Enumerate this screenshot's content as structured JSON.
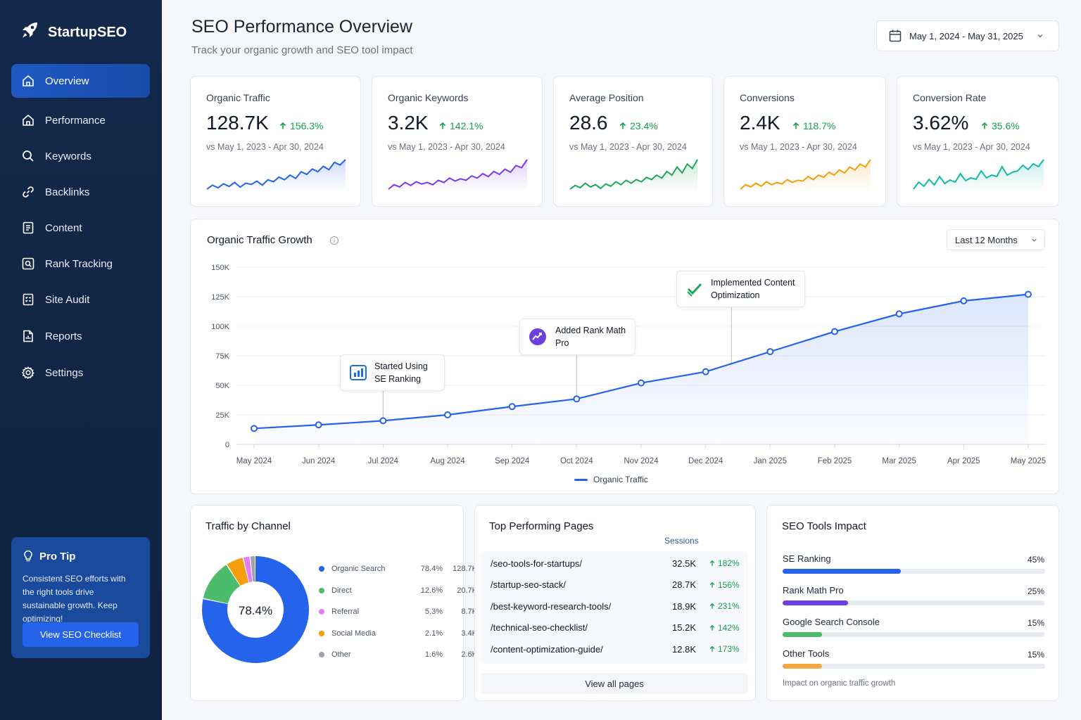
{
  "app": {
    "name": "StartupSEO"
  },
  "sidebar": {
    "items": [
      {
        "label": "Overview",
        "icon": "home-icon"
      },
      {
        "label": "Performance",
        "icon": "home-icon"
      },
      {
        "label": "Keywords",
        "icon": "search-icon"
      },
      {
        "label": "Backlinks",
        "icon": "link-icon"
      },
      {
        "label": "Content",
        "icon": "document-icon"
      },
      {
        "label": "Rank Tracking",
        "icon": "rank-search-icon"
      },
      {
        "label": "Site Audit",
        "icon": "audit-icon"
      },
      {
        "label": "Reports",
        "icon": "report-icon"
      },
      {
        "label": "Settings",
        "icon": "gear-icon"
      }
    ],
    "tip": {
      "title": "Pro Tip",
      "text": "Consistent SEO efforts with the right tools drive sustainable growth. Keep optimizing!",
      "button": "View SEO Checklist"
    }
  },
  "header": {
    "title": "SEO Performance Overview",
    "subtitle": "Track your organic growth and SEO tool impact",
    "date_range": "May 1, 2024 - May 31, 2025"
  },
  "kpis": [
    {
      "label": "Organic Traffic",
      "value": "128.7K",
      "change": "156.3%",
      "compare": "vs May 1, 2023 - Apr 30, 2024",
      "color": "#2563eb",
      "spark": [
        12,
        18,
        14,
        20,
        16,
        22,
        15,
        21,
        19,
        24,
        18,
        26,
        23,
        30,
        26,
        33,
        28,
        38,
        34,
        42,
        38,
        46,
        41,
        52,
        48,
        56
      ]
    },
    {
      "label": "Organic Keywords",
      "value": "3.2K",
      "change": "142.1%",
      "compare": "vs May 1, 2023 - Apr 30, 2024",
      "color": "#7c3aed",
      "spark": [
        10,
        16,
        13,
        19,
        15,
        20,
        17,
        19,
        16,
        22,
        19,
        25,
        21,
        24,
        22,
        28,
        25,
        31,
        27,
        34,
        30,
        37,
        33,
        42,
        39,
        50
      ]
    },
    {
      "label": "Average Position",
      "value": "28.6",
      "change": "23.4%",
      "compare": "vs May 1, 2023 - Apr 30, 2024",
      "color": "#22a55b",
      "spark": [
        14,
        19,
        16,
        22,
        17,
        20,
        15,
        21,
        18,
        24,
        20,
        26,
        22,
        27,
        24,
        30,
        27,
        33,
        29,
        38,
        33,
        44,
        36,
        48,
        42,
        54
      ]
    },
    {
      "label": "Conversions",
      "value": "2.4K",
      "change": "118.7%",
      "compare": "vs May 1, 2023 - Apr 30, 2024",
      "color": "#f59e0b",
      "spark": [
        12,
        18,
        15,
        20,
        16,
        22,
        18,
        21,
        19,
        25,
        21,
        24,
        23,
        29,
        25,
        31,
        28,
        35,
        31,
        38,
        34,
        42,
        38,
        46,
        42,
        52
      ]
    },
    {
      "label": "Conversion Rate",
      "value": "3.62%",
      "change": "35.6%",
      "compare": "vs May 1, 2023 - Apr 30, 2024",
      "color": "#14b8a6",
      "spark": [
        12,
        22,
        16,
        26,
        18,
        30,
        20,
        25,
        22,
        34,
        24,
        28,
        26,
        38,
        28,
        32,
        30,
        44,
        32,
        36,
        38,
        46,
        40,
        48,
        44,
        54
      ]
    }
  ],
  "growth": {
    "title": "Organic Traffic Growth",
    "range": "Last 12 Months",
    "legend": "Organic Traffic",
    "annotations": [
      {
        "text": "Started Using SE Ranking",
        "icon": "se-ranking-icon"
      },
      {
        "text": "Added Rank Math Pro",
        "icon": "rank-math-icon"
      },
      {
        "text": "Implemented Content Optimization",
        "icon": "check-shield-icon"
      }
    ]
  },
  "chart_data": {
    "type": "line",
    "title": "Organic Traffic Growth",
    "x": [
      "May 2024",
      "Jun 2024",
      "Jul 2024",
      "Aug 2024",
      "Sep 2024",
      "Oct 2024",
      "Nov 2024",
      "Dec 2024",
      "Jan 2025",
      "Feb 2025",
      "Mar 2025",
      "Apr 2025",
      "May 2025"
    ],
    "series": [
      {
        "name": "Organic Traffic",
        "values": [
          13500,
          16500,
          20000,
          25000,
          32000,
          38500,
          52000,
          61500,
          78500,
          95500,
          110500,
          121500,
          127000
        ]
      }
    ],
    "yticks": [
      "0",
      "25K",
      "50K",
      "75K",
      "100K",
      "125K",
      "150K"
    ],
    "ylim": [
      0,
      150000
    ],
    "grid": true,
    "legend": "bottom-center"
  },
  "channels": {
    "title": "Traffic by Channel",
    "center_label": "78.4%",
    "items": [
      {
        "name": "Organic Search",
        "pct": "78.4%",
        "value": "128.7K",
        "share": 78.4,
        "color": "#2563eb"
      },
      {
        "name": "Direct",
        "pct": "12.6%",
        "value": "20.7K",
        "share": 12.6,
        "color": "#4cbb6b"
      },
      {
        "name": "Referral",
        "pct": "5.3%",
        "value": "8.7K",
        "share": 5.3,
        "color": "#f59e0b"
      },
      {
        "name": "Social Media",
        "pct": "2.1%",
        "value": "3.4K",
        "share": 2.1,
        "color": "#e879f9"
      },
      {
        "name": "Other",
        "pct": "1.6%",
        "value": "2.6K",
        "share": 1.6,
        "color": "#9ca3af"
      }
    ],
    "legend_colors": [
      "#2563eb",
      "#4cbb6b",
      "#e879f9",
      "#f59e0b",
      "#9ca3af"
    ]
  },
  "top_pages": {
    "title": "Top Performing Pages",
    "sessions_header": "Sessions",
    "rows": [
      {
        "page": "/seo-tools-for-startups/",
        "sessions": "32.5K",
        "change": "182%"
      },
      {
        "page": "/startup-seo-stack/",
        "sessions": "28.7K",
        "change": "156%"
      },
      {
        "page": "/best-keyword-research-tools/",
        "sessions": "18.9K",
        "change": "231%"
      },
      {
        "page": "/technical-seo-checklist/",
        "sessions": "15.2K",
        "change": "142%"
      },
      {
        "page": "/content-optimization-guide/",
        "sessions": "12.8K",
        "change": "173%"
      }
    ],
    "view_all": "View all pages"
  },
  "tools": {
    "title": "SEO Tools Impact",
    "items": [
      {
        "name": "SE Ranking",
        "pct": "45%",
        "value": 0.45,
        "color": "#2563eb"
      },
      {
        "name": "Rank Math Pro",
        "pct": "25%",
        "value": 0.25,
        "color": "#6d3fe0"
      },
      {
        "name": "Google Search Console",
        "pct": "15%",
        "value": 0.15,
        "color": "#4cbb6b"
      },
      {
        "name": "Other Tools",
        "pct": "15%",
        "value": 0.15,
        "color": "#f5a742"
      }
    ],
    "footnote": "Impact on organic traffic growth"
  }
}
